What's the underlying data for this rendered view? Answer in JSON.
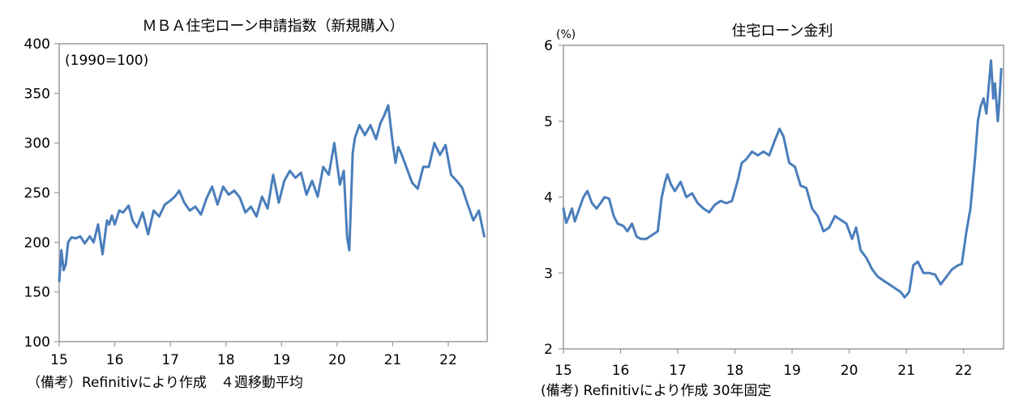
{
  "charts": [
    {
      "title": "ＭＢＡ住宅ローン申請指数（新規購入）",
      "annotation": "(1990=100)",
      "note": "（備考）Refinitivにより作成　４週移動平均",
      "line_color": "#4a7ebb",
      "chart_data": {
        "type": "line",
        "title": "ＭＢＡ住宅ローン申請指数（新規購入）",
        "xlabel": "",
        "ylabel": "",
        "ylim": [
          100,
          400
        ],
        "y_ticks": [
          "100",
          "150",
          "200",
          "250",
          "300",
          "350",
          "400"
        ],
        "xlim": [
          2015,
          2022.7
        ],
        "x_ticks": [
          "15",
          "16",
          "17",
          "18",
          "19",
          "20",
          "21",
          "22"
        ],
        "grid": false,
        "series": [
          {
            "x": [
              2015.0,
              2015.04,
              2015.08,
              2015.12,
              2015.16,
              2015.22,
              2015.3,
              2015.38,
              2015.46,
              2015.55,
              2015.62,
              2015.7,
              2015.78,
              2015.82,
              2015.86,
              2015.9,
              2015.95,
              2016.0,
              2016.08,
              2016.15,
              2016.25,
              2016.32,
              2016.4,
              2016.5,
              2016.6,
              2016.7,
              2016.8,
              2016.9,
              2017.0,
              2017.08,
              2017.16,
              2017.25,
              2017.35,
              2017.45,
              2017.55,
              2017.65,
              2017.75,
              2017.85,
              2017.95,
              2018.05,
              2018.15,
              2018.25,
              2018.35,
              2018.45,
              2018.55,
              2018.65,
              2018.75,
              2018.85,
              2018.95,
              2019.05,
              2019.15,
              2019.25,
              2019.35,
              2019.45,
              2019.55,
              2019.65,
              2019.75,
              2019.85,
              2019.95,
              2020.05,
              2020.12,
              2020.18,
              2020.22,
              2020.28,
              2020.32,
              2020.4,
              2020.5,
              2020.6,
              2020.7,
              2020.78,
              2020.85,
              2020.92,
              2021.0,
              2021.05,
              2021.1,
              2021.15,
              2021.25,
              2021.35,
              2021.45,
              2021.55,
              2021.65,
              2021.75,
              2021.85,
              2021.95,
              2022.05,
              2022.15,
              2022.25,
              2022.35,
              2022.45,
              2022.55,
              2022.65
            ],
            "y": [
              160,
              192,
              172,
              178,
              200,
              205,
              204,
              206,
              199,
              206,
              200,
              218,
              188,
              205,
              222,
              218,
              227,
              218,
              232,
              230,
              237,
              222,
              215,
              230,
              208,
              232,
              226,
              238,
              242,
              246,
              252,
              240,
              232,
              236,
              228,
              244,
              256,
              238,
              256,
              248,
              252,
              245,
              230,
              236,
              226,
              246,
              234,
              268,
              240,
              262,
              272,
              265,
              270,
              248,
              262,
              246,
              276,
              268,
              300,
              258,
              272,
              205,
              192,
              290,
              305,
              318,
              308,
              318,
              304,
              320,
              328,
              338,
              300,
              280,
              296,
              290,
              275,
              260,
              254,
              276,
              276,
              300,
              288,
              298,
              268,
              262,
              255,
              238,
              222,
              232,
              205
            ]
          }
        ]
      }
    },
    {
      "title": "住宅ローン金利",
      "unit_label": "(%)",
      "note": "(備考) Refinitivにより作成 30年固定",
      "line_color": "#4a7ebb",
      "chart_data": {
        "type": "line",
        "title": "住宅ローン金利",
        "xlabel": "",
        "ylabel": "(%)",
        "ylim": [
          2,
          6
        ],
        "y_ticks": [
          "2",
          "3",
          "4",
          "5",
          "6"
        ],
        "xlim": [
          2015,
          2022.7
        ],
        "x_ticks": [
          "15",
          "16",
          "17",
          "18",
          "19",
          "20",
          "21",
          "22"
        ],
        "grid": false,
        "series": [
          {
            "x": [
              2015.0,
              2015.05,
              2015.1,
              2015.15,
              2015.2,
              2015.28,
              2015.35,
              2015.42,
              2015.5,
              2015.58,
              2015.65,
              2015.72,
              2015.8,
              2015.88,
              2015.95,
              2016.05,
              2016.12,
              2016.2,
              2016.28,
              2016.35,
              2016.45,
              2016.55,
              2016.65,
              2016.72,
              2016.78,
              2016.82,
              2016.88,
              2016.95,
              2017.05,
              2017.15,
              2017.25,
              2017.35,
              2017.45,
              2017.55,
              2017.65,
              2017.75,
              2017.85,
              2017.95,
              2018.05,
              2018.12,
              2018.2,
              2018.3,
              2018.4,
              2018.5,
              2018.6,
              2018.7,
              2018.78,
              2018.85,
              2018.95,
              2019.05,
              2019.15,
              2019.25,
              2019.35,
              2019.45,
              2019.55,
              2019.65,
              2019.75,
              2019.85,
              2019.95,
              2020.05,
              2020.12,
              2020.2,
              2020.3,
              2020.4,
              2020.5,
              2020.6,
              2020.7,
              2020.8,
              2020.9,
              2020.97,
              2021.05,
              2021.12,
              2021.2,
              2021.3,
              2021.4,
              2021.5,
              2021.6,
              2021.7,
              2021.8,
              2021.9,
              2021.97,
              2022.05,
              2022.12,
              2022.2,
              2022.25,
              2022.3,
              2022.35,
              2022.4,
              2022.45,
              2022.48,
              2022.52,
              2022.55,
              2022.6,
              2022.62,
              2022.66
            ],
            "y": [
              3.86,
              3.66,
              3.75,
              3.85,
              3.68,
              3.85,
              4.0,
              4.08,
              3.92,
              3.85,
              3.92,
              4.0,
              3.98,
              3.75,
              3.65,
              3.62,
              3.55,
              3.65,
              3.48,
              3.45,
              3.45,
              3.5,
              3.55,
              4.0,
              4.2,
              4.3,
              4.17,
              4.08,
              4.2,
              4.0,
              4.05,
              3.92,
              3.85,
              3.8,
              3.9,
              3.95,
              3.92,
              3.95,
              4.22,
              4.45,
              4.5,
              4.6,
              4.55,
              4.6,
              4.55,
              4.75,
              4.9,
              4.8,
              4.45,
              4.4,
              4.15,
              4.12,
              3.85,
              3.75,
              3.55,
              3.6,
              3.75,
              3.7,
              3.65,
              3.45,
              3.6,
              3.3,
              3.2,
              3.05,
              2.95,
              2.9,
              2.85,
              2.8,
              2.75,
              2.68,
              2.75,
              3.1,
              3.15,
              3.0,
              3.0,
              2.98,
              2.85,
              2.95,
              3.05,
              3.1,
              3.12,
              3.55,
              3.85,
              4.5,
              5.0,
              5.2,
              5.3,
              5.1,
              5.55,
              5.8,
              5.3,
              5.5,
              5.0,
              5.2,
              5.7
            ]
          }
        ]
      }
    }
  ]
}
